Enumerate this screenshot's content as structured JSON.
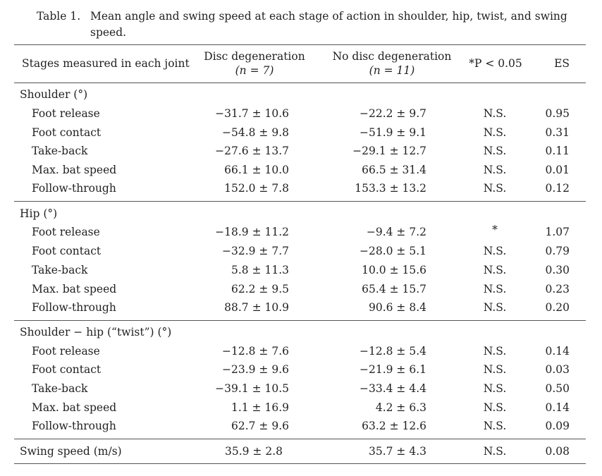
{
  "caption": {
    "label": "Table 1.",
    "text": "Mean angle and swing speed at each stage of action in shoulder, hip, twist, and swing speed."
  },
  "header": {
    "stages": "Stages measured in each joint",
    "dd_line1": "Disc degeneration",
    "dd_line2": "(n = 7)",
    "nd_line1": "No disc degeneration",
    "nd_line2": "(n = 11)",
    "p": "*P < 0.05",
    "es": "ES"
  },
  "sections": [
    {
      "title": "Shoulder (°)",
      "rows": [
        {
          "stage": "Foot release",
          "dd": "−31.7 ± 10.6",
          "nd": "−22.2 ± 9.7",
          "p": "N.S.",
          "es": "0.95"
        },
        {
          "stage": "Foot contact",
          "dd": "−54.8 ± 9.8",
          "nd": "−51.9 ± 9.1",
          "p": "N.S.",
          "es": "0.31"
        },
        {
          "stage": "Take-back",
          "dd": "−27.6 ± 13.7",
          "nd": "−29.1 ± 12.7",
          "p": "N.S.",
          "es": "0.11"
        },
        {
          "stage": "Max. bat speed",
          "dd": "66.1 ± 10.0",
          "nd": "66.5 ± 31.4",
          "p": "N.S.",
          "es": "0.01"
        },
        {
          "stage": "Follow-through",
          "dd": "152.0 ± 7.8",
          "nd": "153.3 ± 13.2",
          "p": "N.S.",
          "es": "0.12"
        }
      ]
    },
    {
      "title": "Hip (°)",
      "rows": [
        {
          "stage": "Foot release",
          "dd": "−18.9 ± 11.2",
          "nd": "−9.4 ± 7.2",
          "p": "*",
          "es": "1.07"
        },
        {
          "stage": "Foot contact",
          "dd": "−32.9 ± 7.7",
          "nd": "−28.0 ± 5.1",
          "p": "N.S.",
          "es": "0.79"
        },
        {
          "stage": "Take-back",
          "dd": "5.8 ± 11.3",
          "nd": "10.0 ± 15.6",
          "p": "N.S.",
          "es": "0.30"
        },
        {
          "stage": "Max. bat speed",
          "dd": "62.2 ± 9.5",
          "nd": "65.4 ± 15.7",
          "p": "N.S.",
          "es": "0.23"
        },
        {
          "stage": "Follow-through",
          "dd": "88.7 ± 10.9",
          "nd": "90.6 ± 8.4",
          "p": "N.S.",
          "es": "0.20"
        }
      ]
    },
    {
      "title": "Shoulder − hip (“twist”) (°)",
      "rows": [
        {
          "stage": "Foot release",
          "dd": "−12.8 ± 7.6",
          "nd": "−12.8 ± 5.4",
          "p": "N.S.",
          "es": "0.14"
        },
        {
          "stage": "Foot contact",
          "dd": "−23.9 ± 9.6",
          "nd": "−21.9 ± 6.1",
          "p": "N.S.",
          "es": "0.03"
        },
        {
          "stage": "Take-back",
          "dd": "−39.1 ± 10.5",
          "nd": "−33.4 ± 4.4",
          "p": "N.S.",
          "es": "0.50"
        },
        {
          "stage": "Max. bat speed",
          "dd": "1.1 ± 16.9",
          "nd": "4.2 ± 6.3",
          "p": "N.S.",
          "es": "0.14"
        },
        {
          "stage": "Follow-through",
          "dd": "62.7 ± 9.6",
          "nd": "63.2 ± 12.6",
          "p": "N.S.",
          "es": "0.09"
        }
      ]
    }
  ],
  "swing": {
    "stage": "Swing speed (m/s)",
    "dd": "35.9 ± 2.8",
    "nd": "35.7 ± 4.3",
    "p": "N.S.",
    "es": "0.08"
  }
}
